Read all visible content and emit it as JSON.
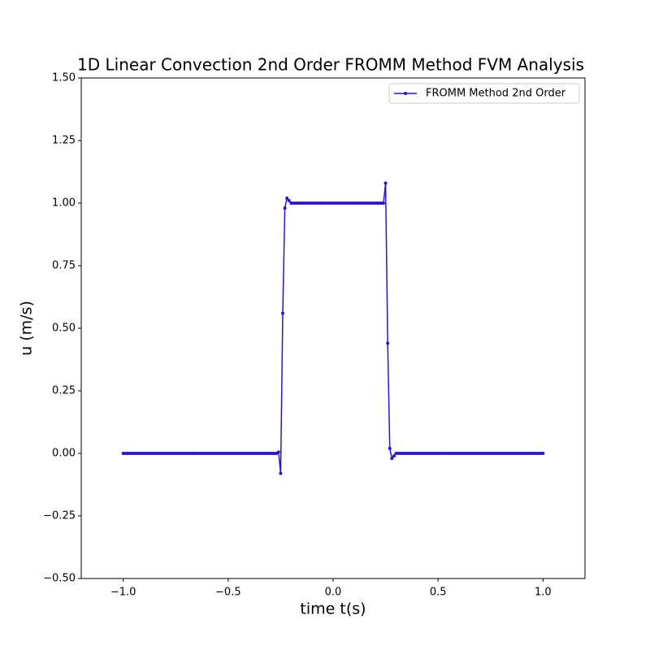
{
  "chart_data": {
    "type": "line",
    "title": "1D Linear Convection 2nd Order FROMM Method FVM Analysis",
    "x_label": "time t(s)",
    "y_label": "u (m/s)",
    "x": [
      -1,
      -0.99,
      -0.98,
      -0.97,
      -0.96,
      -0.95,
      -0.94,
      -0.93,
      -0.92,
      -0.91,
      -0.9,
      -0.89,
      -0.88,
      -0.87,
      -0.86,
      -0.85,
      -0.84,
      -0.83,
      -0.82,
      -0.81,
      -0.8,
      -0.79,
      -0.78,
      -0.77,
      -0.76,
      -0.75,
      -0.74,
      -0.73,
      -0.72,
      -0.71,
      -0.7,
      -0.69,
      -0.68,
      -0.67,
      -0.66,
      -0.65,
      -0.64,
      -0.63,
      -0.62,
      -0.61,
      -0.6,
      -0.59,
      -0.58,
      -0.57,
      -0.56,
      -0.55,
      -0.54,
      -0.53,
      -0.52,
      -0.51,
      -0.5,
      -0.49,
      -0.48,
      -0.47,
      -0.46,
      -0.45,
      -0.44,
      -0.43,
      -0.42,
      -0.41,
      -0.4,
      -0.39,
      -0.38,
      -0.37,
      -0.36,
      -0.35,
      -0.34,
      -0.33,
      -0.32,
      -0.31,
      -0.3,
      -0.29,
      -0.28,
      -0.27,
      -0.26,
      -0.25,
      -0.24,
      -0.23,
      -0.22,
      -0.21,
      -0.2,
      -0.19,
      -0.18,
      -0.17,
      -0.16,
      -0.15,
      -0.14,
      -0.13,
      -0.12,
      -0.11,
      -0.1,
      -0.09,
      -0.08,
      -0.07,
      -0.06,
      -0.05,
      -0.04,
      -0.03,
      -0.02,
      -0.01,
      0,
      0.01,
      0.02,
      0.03,
      0.04,
      0.05,
      0.06,
      0.07,
      0.08,
      0.09,
      0.1,
      0.11,
      0.12,
      0.13,
      0.14,
      0.15,
      0.16,
      0.17,
      0.18,
      0.19,
      0.2,
      0.21,
      0.22,
      0.23,
      0.24,
      0.25,
      0.26,
      0.27,
      0.28,
      0.29,
      0.3,
      0.31,
      0.32,
      0.33,
      0.34,
      0.35,
      0.36,
      0.37,
      0.38,
      0.39,
      0.4,
      0.41,
      0.42,
      0.43,
      0.44,
      0.45,
      0.46,
      0.47,
      0.48,
      0.49,
      0.5,
      0.51,
      0.52,
      0.53,
      0.54,
      0.55,
      0.56,
      0.57,
      0.58,
      0.59,
      0.6,
      0.61,
      0.62,
      0.63,
      0.64,
      0.65,
      0.66,
      0.67,
      0.68,
      0.69,
      0.7,
      0.71,
      0.72,
      0.73,
      0.74,
      0.75,
      0.76,
      0.77,
      0.78,
      0.79,
      0.8,
      0.81,
      0.82,
      0.83,
      0.84,
      0.85,
      0.86,
      0.87,
      0.88,
      0.89,
      0.9,
      0.91,
      0.92,
      0.93,
      0.94,
      0.95,
      0.96,
      0.97,
      0.98,
      0.99,
      1
    ],
    "series": [
      {
        "name": "FROMM Method 2nd Order",
        "color": "#2a12d8",
        "values": [
          0,
          0,
          0,
          0,
          0,
          0,
          0,
          0,
          0,
          0,
          0,
          0,
          0,
          0,
          0,
          0,
          0,
          0,
          0,
          0,
          0,
          0,
          0,
          0,
          0,
          0,
          0,
          0,
          0,
          0,
          0,
          0,
          0,
          0,
          0,
          0,
          0,
          0,
          0,
          0,
          0,
          0,
          0,
          0,
          0,
          0,
          0,
          0,
          0,
          0,
          0,
          0,
          0,
          0,
          0,
          0,
          0,
          0,
          0,
          0,
          0,
          0,
          0,
          0,
          0,
          0,
          0,
          0,
          0,
          0,
          0,
          0,
          0,
          0,
          0.005,
          -0.08,
          0.56,
          0.98,
          1.02,
          1.01,
          1,
          1,
          1,
          1,
          1,
          1,
          1,
          1,
          1,
          1,
          1,
          1,
          1,
          1,
          1,
          1,
          1,
          1,
          1,
          1,
          1,
          1,
          1,
          1,
          1,
          1,
          1,
          1,
          1,
          1,
          1,
          1,
          1,
          1,
          1,
          1,
          1,
          1,
          1,
          1,
          1,
          1,
          1,
          1,
          1,
          1.08,
          0.44,
          0.02,
          -0.02,
          -0.01,
          0,
          0,
          0,
          0,
          0,
          0,
          0,
          0,
          0,
          0,
          0,
          0,
          0,
          0,
          0,
          0,
          0,
          0,
          0,
          0,
          0,
          0,
          0,
          0,
          0,
          0,
          0,
          0,
          0,
          0,
          0,
          0,
          0,
          0,
          0,
          0,
          0,
          0,
          0,
          0,
          0,
          0,
          0,
          0,
          0,
          0,
          0,
          0,
          0,
          0,
          0,
          0,
          0,
          0,
          0,
          0,
          0,
          0,
          0,
          0,
          0,
          0,
          0,
          0,
          0,
          0,
          0,
          0,
          0,
          0,
          0
        ]
      }
    ],
    "xlim": [
      -1.2,
      1.2
    ],
    "ylim": [
      -0.5,
      1.5
    ],
    "xticks": [
      {
        "value": -1,
        "label": "−1.0"
      },
      {
        "value": -0.5,
        "label": "−0.5"
      },
      {
        "value": 0,
        "label": "0.0"
      },
      {
        "value": 0.5,
        "label": "0.5"
      },
      {
        "value": 1,
        "label": "1.0"
      }
    ],
    "yticks": [
      {
        "value": -0.5,
        "label": "−0.50"
      },
      {
        "value": -0.25,
        "label": "−0.25"
      },
      {
        "value": 0,
        "label": "0.00"
      },
      {
        "value": 0.25,
        "label": "0.25"
      },
      {
        "value": 0.5,
        "label": "0.50"
      },
      {
        "value": 0.75,
        "label": "0.75"
      },
      {
        "value": 1,
        "label": "1.00"
      },
      {
        "value": 1.25,
        "label": "1.25"
      },
      {
        "value": 1.5,
        "label": "1.50"
      }
    ],
    "legend": "upper right",
    "grid": false
  }
}
